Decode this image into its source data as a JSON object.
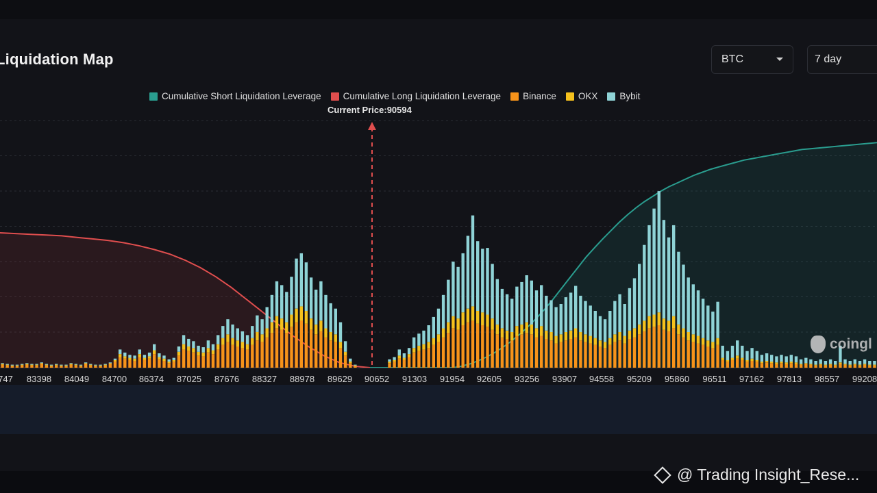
{
  "header": {
    "title": "Liquidation Map",
    "coin_select": "BTC",
    "range_select": "7 day"
  },
  "legend": {
    "items": [
      {
        "label": "Cumulative Short Liquidation Leverage",
        "color": "#2a9d8f"
      },
      {
        "label": "Cumulative Long Liquidation Leverage",
        "color": "#e04e4e"
      },
      {
        "label": "Binance",
        "color": "#f7931a"
      },
      {
        "label": "OKX",
        "color": "#f5c11d"
      },
      {
        "label": "Bybit",
        "color": "#8fd3d6"
      }
    ]
  },
  "current_price_label": "Current Price:90594",
  "watermark": "coingl",
  "credit": "@ Trading Insight_Rese...",
  "chart_data": {
    "type": "bar",
    "x_ticks": [
      "747",
      "83398",
      "84049",
      "84700",
      "86374",
      "87025",
      "87676",
      "88327",
      "88978",
      "89629",
      "90652",
      "91303",
      "91954",
      "92605",
      "93256",
      "93907",
      "94558",
      "95209",
      "95860",
      "96511",
      "97162",
      "97813",
      "98557",
      "99208"
    ],
    "current_price": 90594,
    "series": [
      {
        "name": "Binance",
        "values": [
          4,
          3,
          2,
          2,
          3,
          4,
          3,
          3,
          5,
          3,
          2,
          3,
          2,
          2,
          4,
          3,
          2,
          5,
          3,
          2,
          2,
          3,
          5,
          8,
          14,
          12,
          10,
          9,
          14,
          10,
          12,
          18,
          11,
          9,
          6,
          8,
          16,
          24,
          22,
          20,
          16,
          15,
          20,
          18,
          24,
          30,
          34,
          30,
          28,
          26,
          24,
          30,
          36,
          34,
          40,
          46,
          52,
          50,
          46,
          54,
          60,
          62,
          58,
          50,
          44,
          48,
          40,
          36,
          34,
          26,
          16,
          6,
          2,
          0,
          0,
          0,
          0,
          0,
          0,
          6,
          8,
          12,
          10,
          14,
          20,
          22,
          24,
          26,
          30,
          34,
          40,
          46,
          52,
          50,
          56,
          60,
          62,
          58,
          56,
          54,
          50,
          44,
          40,
          38,
          36,
          42,
          44,
          46,
          44,
          40,
          42,
          38,
          36,
          32,
          34,
          36,
          38,
          40,
          36,
          34,
          32,
          30,
          28,
          26,
          30,
          34,
          36,
          32,
          38,
          40,
          44,
          48,
          52,
          54,
          56,
          50,
          48,
          52,
          44,
          40,
          36,
          34,
          32,
          30,
          28,
          26,
          30,
          10,
          8,
          10,
          12,
          10,
          8,
          9,
          8,
          6,
          7,
          6,
          5,
          6,
          5,
          6,
          5,
          4,
          5,
          4,
          3,
          4,
          3,
          4,
          3,
          5,
          4,
          3,
          4,
          3,
          4,
          3,
          3
        ]
      },
      {
        "name": "OKX",
        "values": [
          1,
          1,
          1,
          1,
          1,
          1,
          1,
          1,
          1,
          1,
          1,
          1,
          1,
          1,
          1,
          1,
          1,
          1,
          1,
          1,
          1,
          1,
          1,
          2,
          4,
          3,
          3,
          3,
          4,
          3,
          3,
          5,
          3,
          3,
          2,
          2,
          5,
          7,
          6,
          6,
          5,
          5,
          6,
          5,
          7,
          9,
          10,
          9,
          8,
          8,
          7,
          9,
          11,
          10,
          12,
          14,
          16,
          15,
          14,
          16,
          18,
          19,
          17,
          15,
          13,
          14,
          12,
          11,
          10,
          8,
          5,
          2,
          1,
          0,
          0,
          0,
          0,
          0,
          0,
          2,
          2,
          4,
          3,
          4,
          6,
          7,
          7,
          8,
          9,
          10,
          12,
          14,
          16,
          15,
          17,
          18,
          19,
          17,
          17,
          16,
          15,
          13,
          12,
          11,
          11,
          13,
          13,
          14,
          13,
          12,
          13,
          11,
          11,
          10,
          10,
          11,
          11,
          12,
          11,
          10,
          10,
          9,
          8,
          8,
          9,
          10,
          11,
          10,
          11,
          12,
          13,
          14,
          16,
          16,
          17,
          15,
          14,
          16,
          13,
          12,
          11,
          10,
          10,
          9,
          8,
          8,
          9,
          3,
          2,
          3,
          4,
          3,
          2,
          3,
          2,
          2,
          2,
          2,
          2,
          2,
          2,
          2,
          2,
          1,
          1,
          1,
          1,
          1,
          1,
          1,
          1,
          2,
          1,
          1,
          1,
          1,
          1,
          1,
          1
        ]
      },
      {
        "name": "Bybit",
        "values": [
          1,
          1,
          1,
          1,
          1,
          1,
          1,
          1,
          1,
          1,
          1,
          1,
          1,
          1,
          1,
          1,
          1,
          1,
          1,
          1,
          1,
          1,
          1,
          2,
          6,
          5,
          4,
          4,
          6,
          4,
          5,
          8,
          5,
          4,
          3,
          3,
          7,
          12,
          10,
          9,
          8,
          7,
          10,
          8,
          12,
          16,
          20,
          18,
          16,
          14,
          12,
          16,
          22,
          20,
          28,
          36,
          46,
          44,
          40,
          50,
          66,
          70,
          64,
          54,
          46,
          52,
          44,
          38,
          34,
          26,
          14,
          4,
          1,
          0,
          0,
          0,
          0,
          0,
          0,
          3,
          4,
          8,
          6,
          8,
          14,
          16,
          18,
          22,
          28,
          34,
          44,
          56,
          72,
          68,
          78,
          96,
          120,
          92,
          84,
          88,
          72,
          60,
          52,
          48,
          44,
          52,
          56,
          62,
          58,
          50,
          54,
          46,
          42,
          38,
          40,
          46,
          50,
          56,
          48,
          44,
          40,
          36,
          32,
          30,
          36,
          44,
          50,
          42,
          56,
          66,
          80,
          100,
          120,
          140,
          160,
          130,
          110,
          120,
          96,
          84,
          72,
          66,
          60,
          52,
          46,
          40,
          48,
          16,
          12,
          16,
          20,
          16,
          12,
          14,
          12,
          9,
          10,
          9,
          8,
          9,
          8,
          9,
          8,
          6,
          7,
          6,
          5,
          6,
          5,
          6,
          5,
          22,
          6,
          5,
          6,
          5,
          6,
          5,
          5
        ]
      },
      {
        "name": "Cumulative Short Liquidation Leverage",
        "values": [
          0,
          0,
          0,
          0,
          0,
          0,
          0,
          0,
          0,
          0,
          0,
          2,
          5,
          9,
          14,
          20,
          27,
          35,
          44,
          54,
          65,
          77,
          90,
          104,
          118,
          132,
          146,
          158,
          170,
          181,
          192,
          202,
          211,
          219,
          226,
          233,
          239,
          244,
          249,
          254,
          258,
          262,
          265,
          268,
          271,
          274,
          276,
          278,
          280,
          282,
          284,
          286,
          288,
          289,
          290,
          291,
          292,
          293,
          294,
          295,
          296,
          297
        ]
      },
      {
        "name": "Cumulative Long Liquidation Leverage",
        "values": [
          178,
          177,
          176,
          175,
          174,
          172,
          170,
          168,
          165,
          161,
          156,
          150,
          142,
          132,
          120,
          106,
          90,
          74,
          58,
          42,
          28,
          16,
          7,
          2,
          0
        ]
      }
    ]
  }
}
